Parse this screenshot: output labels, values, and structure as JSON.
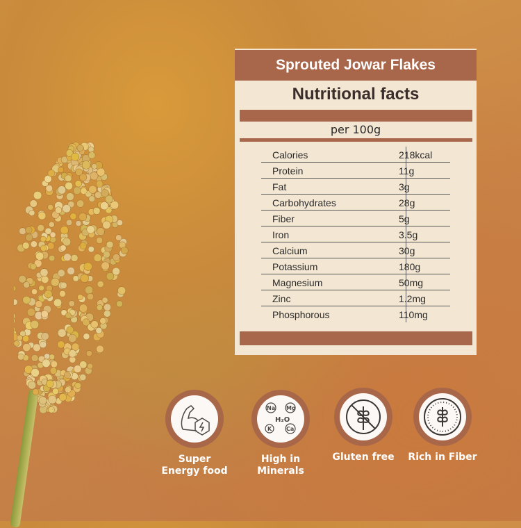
{
  "card": {
    "product": "Sprouted Jowar Flakes",
    "title": "Nutritional facts",
    "serving": "per 100g",
    "rows": [
      {
        "name": "Calories",
        "value": "218kcal"
      },
      {
        "name": "Protein",
        "value": "11g"
      },
      {
        "name": "Fat",
        "value": "3g"
      },
      {
        "name": "Carbohydrates",
        "value": "28g"
      },
      {
        "name": "Fiber",
        "value": "5g"
      },
      {
        "name": "Iron",
        "value": "3.5g"
      },
      {
        "name": "Calcium",
        "value": "30g"
      },
      {
        "name": "Potassium",
        "value": "180g"
      },
      {
        "name": "Magnesium",
        "value": "50mg"
      },
      {
        "name": "Zinc",
        "value": "1.2mg"
      },
      {
        "name": "Phosphorous",
        "value": "110mg"
      }
    ]
  },
  "badges": [
    {
      "icon": "muscle-energy-icon",
      "line1": "Super",
      "line2": "Energy food"
    },
    {
      "icon": "minerals-icon",
      "line1": "High in",
      "line2": "Minerals",
      "symbols": [
        "Na",
        "Mg",
        "H2O",
        "K",
        "Ca"
      ]
    },
    {
      "icon": "gluten-free-icon",
      "line1": "Gluten free",
      "line2": ""
    },
    {
      "icon": "fiber-icon",
      "line1": "Rich in Fiber",
      "line2": ""
    }
  ],
  "colors": {
    "accent": "#a8664a",
    "card": "#f3e6d2"
  }
}
